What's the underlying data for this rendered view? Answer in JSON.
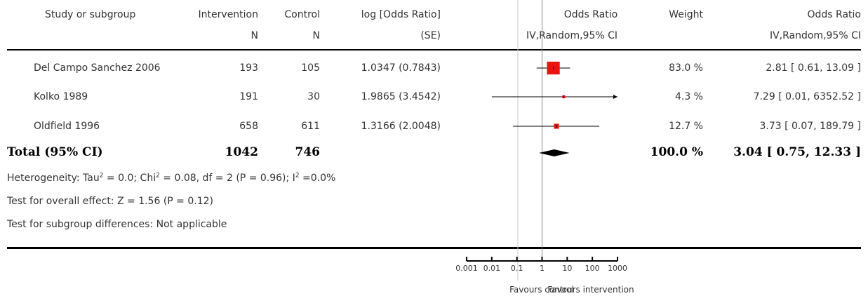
{
  "header": {
    "study": "Study or subgroup",
    "intervention": "Intervention",
    "control": "Control",
    "log_or": "log [Odds Ratio]",
    "or_plot": "Odds Ratio",
    "weight": "Weight",
    "or_text": "Odds Ratio",
    "n_int": "N",
    "n_ctrl": "N",
    "se": "(SE)",
    "plot_method": "IV,Random,95% CI",
    "text_method": "IV,Random,95% CI"
  },
  "chart_data": {
    "type": "forest",
    "scale": "log",
    "x_ticks": [
      "0.001",
      "0.01",
      "0.1",
      "1",
      "10",
      "100",
      "1000"
    ],
    "x_tick_values": [
      0.001,
      0.01,
      0.1,
      1,
      10,
      100,
      1000
    ],
    "xlim": [
      0.001,
      1000
    ],
    "favours_left": "Favours control",
    "favours_right": "Favours intervention",
    "studies": [
      {
        "name": "Del Campo Sanchez 2006",
        "n_int": "193",
        "n_ctrl": "105",
        "log_or_se": "1.0347 (0.7843)",
        "weight": "83.0 %",
        "ci_text": "2.81 [ 0.61, 13.09 ]",
        "or": 2.81,
        "lo": 0.61,
        "hi": 13.09,
        "weight_pct": 83.0
      },
      {
        "name": "Kolko 1989",
        "n_int": "191",
        "n_ctrl": "30",
        "log_or_se": "1.9865 (3.4542)",
        "weight": "4.3 %",
        "ci_text": "7.29 [ 0.01, 6352.52 ]",
        "or": 7.29,
        "lo": 0.01,
        "hi": 6352.52,
        "weight_pct": 4.3
      },
      {
        "name": "Oldfield 1996",
        "n_int": "658",
        "n_ctrl": "611",
        "log_or_se": "1.3166 (2.0048)",
        "weight": "12.7 %",
        "ci_text": "3.73 [ 0.07, 189.79 ]",
        "or": 3.73,
        "lo": 0.07,
        "hi": 189.79,
        "weight_pct": 12.7
      }
    ],
    "total": {
      "label": "Total (95% CI)",
      "n_int": "1042",
      "n_ctrl": "746",
      "weight": "100.0 %",
      "ci_text": "3.04 [ 0.75, 12.33 ]",
      "or": 3.04,
      "lo": 0.75,
      "hi": 12.33
    }
  },
  "footer": {
    "het_prefix": "Heterogeneity: Tau",
    "het_mid": " = 0.0; Chi",
    "het_rest": " = 0.08, df = 2 (P = 0.96); I",
    "het_end": " =0.0%",
    "sup2": "2",
    "overall": "Test for overall effect: Z = 1.56 (P = 0.12)",
    "subgroup": "Test for subgroup differences: Not applicable"
  }
}
